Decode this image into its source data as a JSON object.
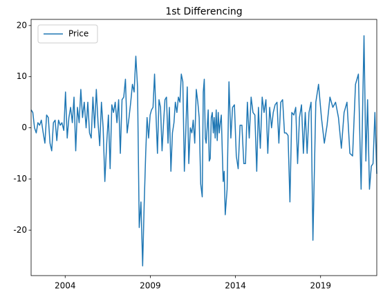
{
  "chart_data": {
    "type": "line",
    "title": "1st Differencing",
    "x": [
      2002.0,
      2002.1,
      2002.2,
      2002.3,
      2002.4,
      2002.5,
      2002.6,
      2002.71,
      2002.81,
      2002.91,
      2003.01,
      2003.11,
      2003.21,
      2003.31,
      2003.41,
      2003.51,
      2003.61,
      2003.71,
      2003.81,
      2003.92,
      2004.02,
      2004.12,
      2004.22,
      2004.32,
      2004.42,
      2004.52,
      2004.62,
      2004.72,
      2004.82,
      2004.92,
      2005.02,
      2005.12,
      2005.23,
      2005.33,
      2005.43,
      2005.53,
      2005.63,
      2005.73,
      2005.83,
      2005.93,
      2006.03,
      2006.13,
      2006.23,
      2006.33,
      2006.44,
      2006.54,
      2006.64,
      2006.74,
      2006.84,
      2006.94,
      2007.04,
      2007.14,
      2007.24,
      2007.34,
      2007.44,
      2007.54,
      2007.64,
      2007.75,
      2007.85,
      2007.95,
      2008.05,
      2008.15,
      2008.25,
      2008.35,
      2008.45,
      2008.55,
      2008.64,
      2008.73,
      2008.81,
      2008.9,
      2008.99,
      2009.07,
      2009.16,
      2009.25,
      2009.34,
      2009.42,
      2009.51,
      2009.6,
      2009.69,
      2009.77,
      2009.86,
      2009.95,
      2010.04,
      2010.12,
      2010.21,
      2010.3,
      2010.39,
      2010.47,
      2010.56,
      2010.65,
      2010.74,
      2010.82,
      2010.91,
      2011.0,
      2011.09,
      2011.17,
      2011.26,
      2011.35,
      2011.44,
      2011.52,
      2011.61,
      2011.7,
      2011.79,
      2011.87,
      2011.96,
      2012.05,
      2012.11,
      2012.17,
      2012.23,
      2012.28,
      2012.34,
      2012.4,
      2012.46,
      2012.52,
      2012.58,
      2012.64,
      2012.7,
      2012.75,
      2012.81,
      2012.87,
      2012.93,
      2012.99,
      2013.05,
      2013.11,
      2013.17,
      2013.23,
      2013.28,
      2013.34,
      2013.4,
      2013.51,
      2013.62,
      2013.73,
      2013.83,
      2013.94,
      2014.05,
      2014.16,
      2014.27,
      2014.38,
      2014.49,
      2014.59,
      2014.7,
      2014.81,
      2014.92,
      2015.03,
      2015.14,
      2015.25,
      2015.35,
      2015.46,
      2015.57,
      2015.68,
      2015.79,
      2015.9,
      2016.01,
      2016.12,
      2016.22,
      2016.33,
      2016.44,
      2016.55,
      2016.66,
      2016.77,
      2016.88,
      2016.98,
      2017.09,
      2017.2,
      2017.31,
      2017.43,
      2017.54,
      2017.65,
      2017.76,
      2017.88,
      2017.99,
      2018.1,
      2018.21,
      2018.32,
      2018.44,
      2018.55,
      2018.72,
      2018.88,
      2019.05,
      2019.22,
      2019.38,
      2019.55,
      2019.72,
      2019.88,
      2020.05,
      2020.22,
      2020.38,
      2020.55,
      2020.72,
      2020.88,
      2021.05,
      2021.22,
      2021.38,
      2021.55,
      2021.66,
      2021.76,
      2021.87,
      2021.98,
      2022.08,
      2022.19,
      2022.3
    ],
    "series": [
      {
        "name": "Price",
        "color": "#1f77b4",
        "values": [
          3.5,
          3,
          0,
          -1,
          1,
          0.5,
          1.5,
          -1,
          -3,
          2.5,
          2,
          -3,
          -4.5,
          1,
          1.5,
          -2.5,
          1.5,
          0.5,
          1,
          -0.5,
          7,
          -2,
          2,
          4,
          1,
          6,
          -4.5,
          4,
          1,
          7.5,
          2,
          5,
          0,
          5,
          -1,
          -2,
          6,
          0,
          7.5,
          1,
          -3.5,
          5,
          0,
          -10.5,
          -3,
          2.5,
          -8,
          4.5,
          3,
          5,
          1,
          5.5,
          -5,
          5.5,
          6,
          9.5,
          -1,
          2,
          5,
          8.5,
          7,
          14,
          8,
          -19.5,
          -14.5,
          -27,
          -15,
          -5,
          2,
          -2,
          2.5,
          3.5,
          4,
          10.5,
          2,
          -5,
          5.5,
          4,
          -4.5,
          0.5,
          5.5,
          6,
          -3,
          4,
          -8.5,
          -1,
          1,
          5,
          3,
          6,
          5,
          10.5,
          9,
          -8.5,
          0,
          8,
          -7,
          0,
          -1,
          1.5,
          -3,
          7.5,
          5,
          2,
          -11,
          -13.5,
          7,
          9.5,
          -2,
          -3,
          0,
          3.5,
          -6.5,
          -6,
          2,
          3,
          -1,
          2,
          -2,
          3.5,
          -2.5,
          3,
          -1,
          1,
          2.5,
          -5,
          -10.5,
          -8.5,
          -17,
          -12,
          9,
          -2,
          4,
          4.5,
          -5.5,
          -8,
          0.5,
          0.5,
          -7,
          -7,
          5,
          -2,
          6,
          3,
          2.5,
          -8.5,
          4,
          -4,
          6,
          3,
          5.5,
          -5,
          4,
          0,
          3,
          4.5,
          5,
          -3,
          5,
          5.5,
          -1,
          -1,
          -1.5,
          -14.5,
          3,
          2.5,
          4,
          -7,
          2,
          4.5,
          -5,
          3,
          -5,
          3,
          5,
          -22,
          5,
          8.5,
          2,
          -3,
          0.5,
          6,
          4,
          5,
          2,
          -4,
          3,
          5,
          -5,
          -5.5,
          8.5,
          10.5,
          -12,
          18,
          -6.5,
          5.5,
          -12,
          -7.5,
          -7,
          3,
          -9
        ]
      }
    ],
    "xlim": [
      2002.0,
      2022.3
    ],
    "xticks": [
      2004,
      2009,
      2014,
      2019
    ],
    "ylim": [
      -28.9,
      21.2
    ],
    "yticks": [
      -20,
      -10,
      0,
      10,
      20
    ],
    "legend": "upper left",
    "grid": false
  }
}
